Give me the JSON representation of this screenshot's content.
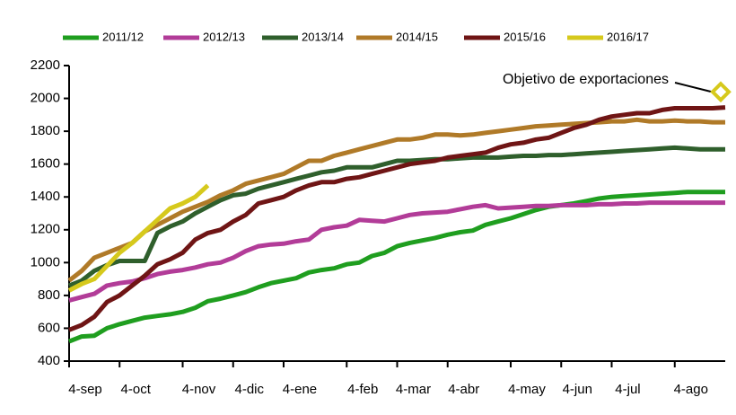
{
  "chart_data": {
    "type": "line",
    "categories": [
      "4-sep",
      null,
      null,
      null,
      "4-oct",
      null,
      null,
      null,
      null,
      "4-nov",
      null,
      null,
      null,
      "4-dic",
      null,
      null,
      null,
      "4-ene",
      null,
      null,
      null,
      null,
      "4-feb",
      null,
      null,
      null,
      "4-mar",
      null,
      null,
      null,
      "4-abr",
      null,
      null,
      null,
      null,
      "4-may",
      null,
      null,
      null,
      "4-jun",
      null,
      null,
      null,
      "4-jul",
      null,
      null,
      null,
      null,
      "4-ago",
      null,
      null,
      null,
      null
    ],
    "series": [
      {
        "name": "2011/12",
        "color": "#1f9e1f",
        "values": [
          520,
          550,
          555,
          600,
          625,
          645,
          665,
          675,
          685,
          700,
          725,
          765,
          780,
          800,
          820,
          850,
          875,
          890,
          905,
          940,
          955,
          965,
          990,
          1000,
          1040,
          1060,
          1100,
          1120,
          1135,
          1150,
          1170,
          1185,
          1195,
          1230,
          1250,
          1270,
          1295,
          1320,
          1340,
          1350,
          1360,
          1375,
          1390,
          1400,
          1405,
          1410,
          1415,
          1420,
          1425,
          1430,
          1430,
          1430,
          1430
        ]
      },
      {
        "name": "2012/13",
        "color": "#b23c98",
        "values": [
          770,
          790,
          810,
          860,
          875,
          885,
          905,
          930,
          945,
          955,
          970,
          990,
          1000,
          1030,
          1070,
          1100,
          1110,
          1115,
          1130,
          1140,
          1200,
          1215,
          1225,
          1260,
          1255,
          1250,
          1270,
          1290,
          1300,
          1305,
          1310,
          1325,
          1340,
          1350,
          1330,
          1335,
          1340,
          1345,
          1345,
          1350,
          1350,
          1350,
          1355,
          1355,
          1360,
          1360,
          1365,
          1365,
          1365,
          1365,
          1365,
          1365,
          1365
        ]
      },
      {
        "name": "2013/14",
        "color": "#2f5f2c",
        "values": [
          860,
          890,
          950,
          985,
          1010,
          1010,
          1010,
          1180,
          1220,
          1250,
          1300,
          1340,
          1380,
          1410,
          1420,
          1450,
          1470,
          1490,
          1510,
          1530,
          1550,
          1560,
          1580,
          1580,
          1580,
          1600,
          1620,
          1620,
          1625,
          1630,
          1630,
          1635,
          1640,
          1640,
          1640,
          1645,
          1650,
          1650,
          1655,
          1655,
          1660,
          1665,
          1670,
          1675,
          1680,
          1685,
          1690,
          1695,
          1700,
          1695,
          1690,
          1690,
          1690
        ]
      },
      {
        "name": "2014/15",
        "color": "#b07a28",
        "values": [
          890,
          950,
          1030,
          1060,
          1090,
          1120,
          1190,
          1230,
          1270,
          1310,
          1340,
          1370,
          1410,
          1440,
          1480,
          1500,
          1520,
          1540,
          1580,
          1620,
          1620,
          1650,
          1670,
          1690,
          1710,
          1730,
          1750,
          1750,
          1760,
          1780,
          1780,
          1775,
          1780,
          1790,
          1800,
          1810,
          1820,
          1830,
          1835,
          1840,
          1845,
          1850,
          1855,
          1860,
          1860,
          1870,
          1860,
          1860,
          1865,
          1860,
          1860,
          1855,
          1855
        ]
      },
      {
        "name": "2015/16",
        "color": "#6f1515",
        "values": [
          590,
          620,
          670,
          760,
          800,
          860,
          920,
          990,
          1020,
          1060,
          1140,
          1180,
          1200,
          1250,
          1290,
          1360,
          1380,
          1400,
          1440,
          1470,
          1490,
          1490,
          1510,
          1520,
          1540,
          1560,
          1580,
          1600,
          1610,
          1620,
          1640,
          1650,
          1660,
          1670,
          1700,
          1720,
          1730,
          1750,
          1760,
          1790,
          1820,
          1840,
          1870,
          1890,
          1900,
          1910,
          1910,
          1930,
          1940,
          1940,
          1940,
          1940,
          1945
        ]
      },
      {
        "name": "2016/17",
        "color": "#d6c91c",
        "values": [
          830,
          870,
          900,
          980,
          1060,
          1120,
          1190,
          1260,
          1330,
          1360,
          1400,
          1470,
          null,
          null,
          null,
          null,
          null,
          null,
          null,
          null,
          null,
          null,
          null,
          null,
          null,
          null,
          null,
          null,
          null,
          null,
          null,
          null,
          null,
          null,
          null,
          null,
          null,
          null,
          null,
          null,
          null,
          null,
          null,
          null,
          null,
          null,
          null,
          null,
          null,
          null,
          null,
          null,
          null
        ]
      }
    ],
    "target": {
      "label": "Objetivo de exportaciones",
      "value": 2040,
      "color": "#d6c91c"
    },
    "ylim": [
      400,
      2200
    ],
    "yticks": [
      400,
      600,
      800,
      1000,
      1200,
      1400,
      1600,
      1800,
      2000,
      2200
    ],
    "grid": false,
    "legend": "top"
  }
}
